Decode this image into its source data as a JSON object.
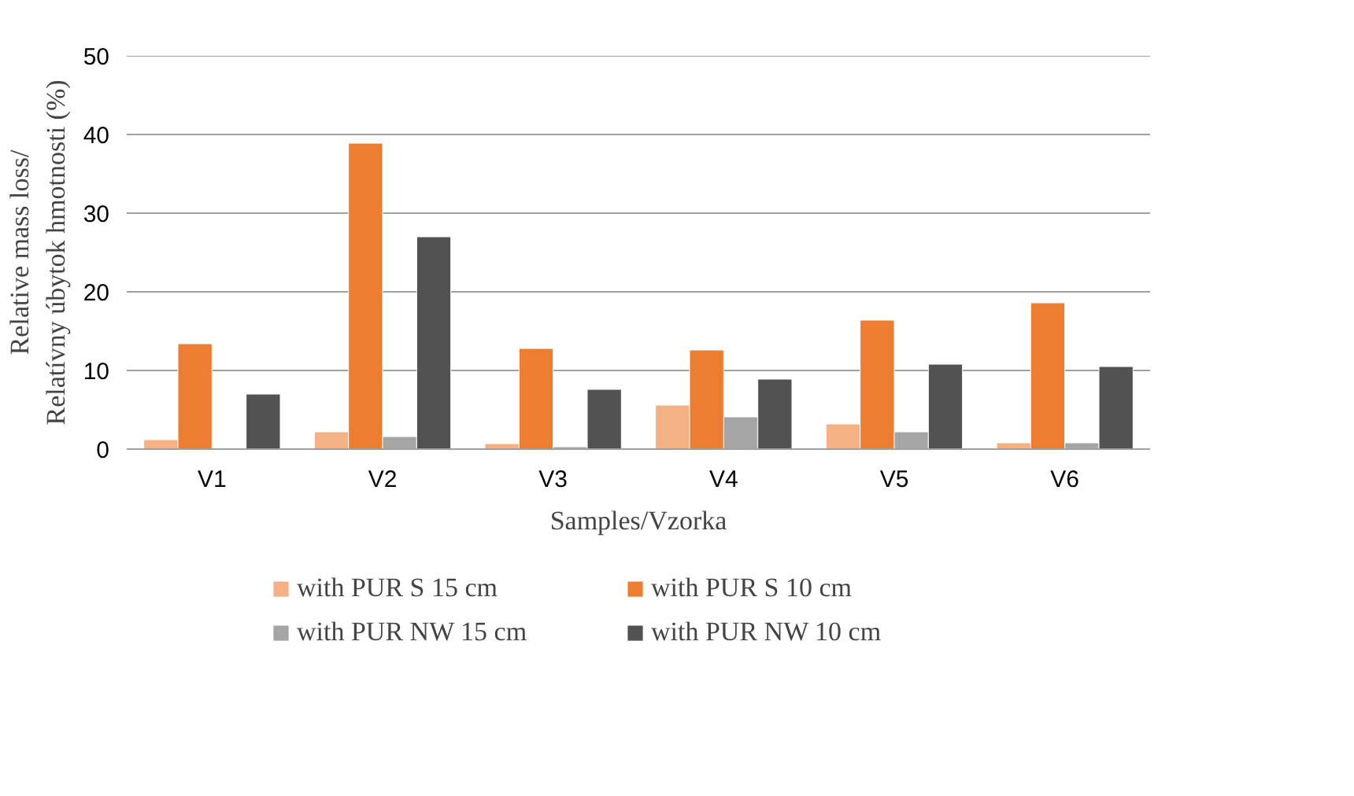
{
  "chart_data": {
    "type": "bar",
    "xlabel": "Samples/Vzorka",
    "ylabel": "Relative mass loss/\nRelatívny úbytok hmotnosti (%)",
    "categories": [
      "V1",
      "V2",
      "V3",
      "V4",
      "V5",
      "V6"
    ],
    "series": [
      {
        "name": "with PUR S 15 cm",
        "color": "#f4b183",
        "values": [
          1.2,
          2.2,
          0.7,
          5.6,
          3.2,
          0.8
        ]
      },
      {
        "name": "with PUR S 10 cm",
        "color": "#ed7d31",
        "values": [
          13.4,
          38.9,
          12.8,
          12.6,
          16.4,
          18.6
        ]
      },
      {
        "name": "with PUR NW 15 cm",
        "color": "#a5a5a5",
        "values": [
          null,
          1.6,
          0.3,
          4.1,
          2.2,
          0.8
        ]
      },
      {
        "name": "with PUR NW 10 cm",
        "color": "#525252",
        "values": [
          7.0,
          27.0,
          7.6,
          8.9,
          10.8,
          10.5
        ]
      }
    ],
    "ylim": [
      0,
      50
    ],
    "yticks": [
      0,
      10,
      20,
      30,
      40,
      50
    ],
    "grid": "y",
    "legend": "bottom"
  }
}
